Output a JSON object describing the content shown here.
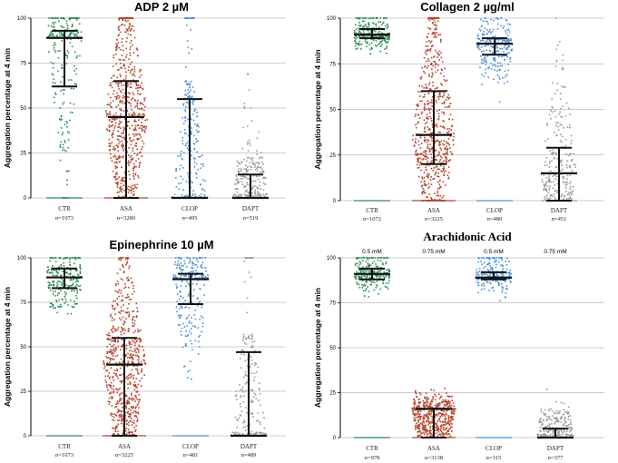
{
  "figure": {
    "ylabel": "Aggregation percentage at 4 min"
  },
  "chart_data": [
    {
      "type": "scatter",
      "title": "ADP 2 µM",
      "ylabel": "Aggregation percentage at 4 min",
      "ylim": [
        0,
        100
      ],
      "yticks": [
        "0",
        "25",
        "50",
        "75",
        "100"
      ],
      "grid": true,
      "categories": [
        "CTR",
        "ASA",
        "CLOP",
        "DAPT"
      ],
      "counts": [
        "n=1073",
        "n=3280",
        "n=495",
        "n=519"
      ],
      "colors": [
        "#2e8b57",
        "#b5452e",
        "#4a90d9",
        "#9a9a9a"
      ],
      "series": [
        {
          "name": "CTR",
          "median": 89,
          "q1": 62,
          "q3": 93
        },
        {
          "name": "ASA",
          "median": 45,
          "q1": 0,
          "q3": 65
        },
        {
          "name": "CLOP",
          "median": 0,
          "q1": 0,
          "q3": 55
        },
        {
          "name": "DAPT",
          "median": 0,
          "q1": 0,
          "q3": 13
        }
      ],
      "annotations": [
        "",
        "",
        "",
        ""
      ]
    },
    {
      "type": "scatter",
      "title": "Collagen 2  µg/ml",
      "ylabel": "Aggregation percentage at 4 min",
      "ylim": [
        0,
        100
      ],
      "yticks": [
        "0",
        "25",
        "50",
        "75",
        "100"
      ],
      "grid": true,
      "categories": [
        "CTR",
        "ASA",
        "CLOP",
        "DAPT"
      ],
      "counts": [
        "n=1072",
        "n=3225",
        "n=480",
        "n=451"
      ],
      "colors": [
        "#2e8b57",
        "#b5452e",
        "#4a90d9",
        "#9a9a9a"
      ],
      "series": [
        {
          "name": "CTR",
          "median": 91,
          "q1": 89,
          "q3": 94
        },
        {
          "name": "ASA",
          "median": 36,
          "q1": 20,
          "q3": 60
        },
        {
          "name": "CLOP",
          "median": 86,
          "q1": 80,
          "q3": 89
        },
        {
          "name": "DAPT",
          "median": 15,
          "q1": 0,
          "q3": 29
        }
      ],
      "annotations": [
        "",
        "",
        "",
        ""
      ]
    },
    {
      "type": "scatter",
      "title": "Epinephrine 10 µM",
      "ylabel": "Aggregation percentage at 4 min",
      "ylim": [
        0,
        100
      ],
      "yticks": [
        "0",
        "25",
        "50",
        "75",
        "100"
      ],
      "grid": true,
      "categories": [
        "CTR",
        "ASA",
        "CLOP",
        "DAPT"
      ],
      "counts": [
        "n=1073",
        "n=3225",
        "n=481",
        "n=489"
      ],
      "colors": [
        "#2e8b57",
        "#b5452e",
        "#4a90d9",
        "#9a9a9a"
      ],
      "series": [
        {
          "name": "CTR",
          "median": 89,
          "q1": 83,
          "q3": 94
        },
        {
          "name": "ASA",
          "median": 40,
          "q1": 0,
          "q3": 55
        },
        {
          "name": "CLOP",
          "median": 88,
          "q1": 74,
          "q3": 91
        },
        {
          "name": "DAPT",
          "median": 0,
          "q1": 0,
          "q3": 47
        }
      ],
      "annotations": [
        "",
        "",
        "",
        ""
      ]
    },
    {
      "type": "scatter",
      "title": "Arachidonic Acid",
      "ylabel": "Aggregation percentage at 4 min",
      "ylim": [
        0,
        100
      ],
      "yticks": [
        "0",
        "25",
        "50",
        "75",
        "100"
      ],
      "grid": true,
      "categories": [
        "CTR",
        "ASA",
        "CLOP",
        "DAPT"
      ],
      "counts": [
        "n=978",
        "n=3138",
        "n=315",
        "n=377"
      ],
      "colors": [
        "#2e8b57",
        "#b5452e",
        "#4a90d9",
        "#9a9a9a"
      ],
      "series": [
        {
          "name": "CTR",
          "median": 91,
          "q1": 88,
          "q3": 94
        },
        {
          "name": "ASA",
          "median": 16,
          "q1": 0,
          "q3": 16
        },
        {
          "name": "CLOP",
          "median": 89,
          "q1": 88,
          "q3": 92
        },
        {
          "name": "DAPT",
          "median": 0,
          "q1": 0,
          "q3": 5
        }
      ],
      "annotations": [
        "0.5 mM",
        "0.75 mM",
        "0.5 mM",
        "0.75 mM"
      ]
    }
  ]
}
